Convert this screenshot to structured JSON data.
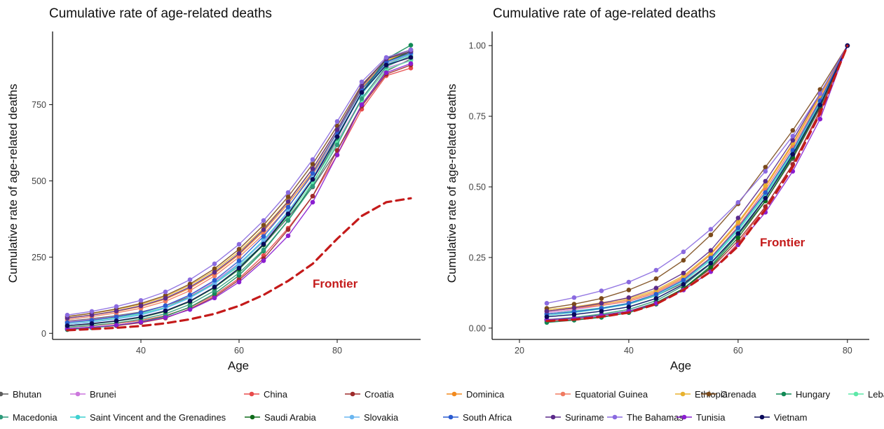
{
  "chart_data": [
    {
      "type": "line",
      "title": "Cumulative rate of age-related deaths",
      "xlabel": "Age",
      "ylabel": "Cumulative rate of age-related deaths",
      "xlim": [
        22,
        97
      ],
      "ylim": [
        -20,
        990
      ],
      "xticks": [
        40,
        60,
        80
      ],
      "yticks": [
        0,
        250,
        500,
        750
      ],
      "x": [
        25,
        30,
        35,
        40,
        45,
        50,
        55,
        60,
        65,
        70,
        75,
        80,
        85,
        90,
        95
      ],
      "series": [
        {
          "name": "Bhutan",
          "color": "#5b5b5b",
          "values": [
            40,
            48,
            58,
            70,
            90,
            120,
            165,
            220,
            290,
            380,
            480,
            600,
            750,
            860,
            900
          ]
        },
        {
          "name": "Brunei",
          "color": "#cc77dd",
          "values": [
            38,
            45,
            55,
            68,
            90,
            125,
            170,
            230,
            300,
            395,
            505,
            630,
            770,
            870,
            895
          ]
        },
        {
          "name": "China",
          "color": "#e84b4b",
          "values": [
            20,
            25,
            32,
            42,
            58,
            85,
            125,
            180,
            255,
            345,
            450,
            585,
            735,
            845,
            870
          ]
        },
        {
          "name": "Croatia",
          "color": "#9e2a2a",
          "values": [
            15,
            20,
            25,
            35,
            50,
            80,
            120,
            175,
            245,
            340,
            450,
            600,
            745,
            850,
            880
          ]
        },
        {
          "name": "Dominica",
          "color": "#f28a1e",
          "values": [
            50,
            60,
            72,
            88,
            112,
            148,
            196,
            258,
            335,
            425,
            530,
            660,
            800,
            895,
            920
          ]
        },
        {
          "name": "Equatorial Guinea",
          "color": "#f07a60",
          "values": [
            45,
            55,
            67,
            82,
            105,
            140,
            188,
            250,
            325,
            415,
            520,
            650,
            790,
            885,
            915
          ]
        },
        {
          "name": "Ethiopia",
          "color": "#e8b22e",
          "values": [
            55,
            65,
            78,
            95,
            120,
            158,
            206,
            268,
            345,
            435,
            540,
            668,
            805,
            895,
            925
          ]
        },
        {
          "name": "Grenada",
          "color": "#7b4a1a",
          "values": [
            55,
            66,
            80,
            98,
            124,
            162,
            212,
            276,
            355,
            448,
            555,
            680,
            815,
            900,
            930
          ]
        },
        {
          "name": "Hungary",
          "color": "#118a55",
          "values": [
            12,
            18,
            26,
            38,
            56,
            86,
            130,
            190,
            270,
            370,
            490,
            640,
            790,
            900,
            945
          ]
        },
        {
          "name": "Lebanon",
          "color": "#5de8a8",
          "values": [
            35,
            42,
            52,
            65,
            85,
            118,
            162,
            220,
            292,
            385,
            495,
            625,
            765,
            865,
            895
          ]
        },
        {
          "name": "Macedonia",
          "color": "#2d9a7a",
          "values": [
            20,
            26,
            34,
            46,
            64,
            95,
            140,
            198,
            274,
            370,
            482,
            618,
            770,
            875,
            910
          ]
        },
        {
          "name": "Saint Vincent and the Grenadines",
          "color": "#3fd0d0",
          "values": [
            30,
            38,
            48,
            62,
            84,
            118,
            165,
            228,
            306,
            400,
            510,
            645,
            785,
            880,
            915
          ]
        },
        {
          "name": "Saudi Arabia",
          "color": "#0e6b1a",
          "values": [
            25,
            31,
            40,
            52,
            72,
            104,
            150,
            210,
            290,
            390,
            505,
            645,
            790,
            890,
            925
          ]
        },
        {
          "name": "Slovakia",
          "color": "#6ab6f0",
          "values": [
            30,
            37,
            47,
            60,
            82,
            116,
            162,
            225,
            302,
            398,
            510,
            650,
            790,
            885,
            918
          ]
        },
        {
          "name": "South Africa",
          "color": "#2a5bd0",
          "values": [
            35,
            43,
            54,
            68,
            91,
            126,
            174,
            238,
            318,
            414,
            525,
            660,
            800,
            890,
            920
          ]
        },
        {
          "name": "Suriname",
          "color": "#5b2a8a",
          "values": [
            50,
            60,
            73,
            90,
            115,
            152,
            200,
            262,
            340,
            432,
            540,
            668,
            810,
            900,
            925
          ]
        },
        {
          "name": "The Bahamas",
          "color": "#8a6ae0",
          "values": [
            60,
            72,
            88,
            108,
            136,
            176,
            228,
            292,
            370,
            462,
            570,
            695,
            825,
            905,
            930
          ]
        },
        {
          "name": "Tunisia",
          "color": "#8a1ed0",
          "values": [
            15,
            20,
            27,
            37,
            52,
            78,
            116,
            168,
            238,
            320,
            430,
            585,
            750,
            855,
            885
          ]
        },
        {
          "name": "Vietnam",
          "color": "#0a0a5a",
          "values": [
            25,
            32,
            41,
            54,
            74,
            106,
            152,
            214,
            293,
            392,
            505,
            645,
            790,
            880,
            905
          ]
        }
      ],
      "frontier": {
        "label": "Frontier",
        "color": "#c41a1a",
        "x": [
          25,
          30,
          35,
          40,
          45,
          50,
          55,
          60,
          65,
          70,
          75,
          80,
          85,
          90,
          95
        ],
        "values": [
          10,
          14,
          18,
          24,
          33,
          46,
          64,
          90,
          126,
          172,
          228,
          310,
          385,
          430,
          443
        ]
      },
      "frontier_label_at": [
        75,
        150
      ]
    },
    {
      "type": "line",
      "title": "Cumulative rate of age-related deaths",
      "xlabel": "Age",
      "ylabel": "Cumulative rate of age-related deaths",
      "xlim": [
        15,
        84
      ],
      "ylim": [
        -0.04,
        1.05
      ],
      "xticks": [
        20,
        40,
        60,
        80
      ],
      "yticks": [
        0.0,
        0.25,
        0.5,
        0.75,
        1.0
      ],
      "ytick_labels": [
        "0.00",
        "0.25",
        "0.50",
        "0.75",
        "1.00"
      ],
      "x": [
        25,
        30,
        35,
        40,
        45,
        50,
        55,
        60,
        65,
        70,
        75,
        80
      ],
      "series": [
        {
          "name": "Bhutan",
          "color": "#5b5b5b",
          "values": [
            0.05,
            0.06,
            0.07,
            0.085,
            0.115,
            0.16,
            0.23,
            0.33,
            0.45,
            0.6,
            0.78,
            1.0
          ]
        },
        {
          "name": "Brunei",
          "color": "#cc77dd",
          "values": [
            0.055,
            0.065,
            0.08,
            0.095,
            0.125,
            0.175,
            0.25,
            0.36,
            0.48,
            0.63,
            0.8,
            1.0
          ]
        },
        {
          "name": "China",
          "color": "#e84b4b",
          "values": [
            0.03,
            0.035,
            0.045,
            0.06,
            0.085,
            0.135,
            0.2,
            0.3,
            0.43,
            0.58,
            0.76,
            1.0
          ]
        },
        {
          "name": "Croatia",
          "color": "#9e2a2a",
          "values": [
            0.025,
            0.03,
            0.04,
            0.055,
            0.085,
            0.14,
            0.21,
            0.31,
            0.43,
            0.58,
            0.77,
            1.0
          ]
        },
        {
          "name": "Dominica",
          "color": "#f28a1e",
          "values": [
            0.06,
            0.07,
            0.085,
            0.1,
            0.13,
            0.18,
            0.26,
            0.37,
            0.5,
            0.65,
            0.82,
            1.0
          ]
        },
        {
          "name": "Equatorial Guinea",
          "color": "#f07a60",
          "values": [
            0.06,
            0.07,
            0.08,
            0.095,
            0.125,
            0.175,
            0.25,
            0.36,
            0.49,
            0.64,
            0.81,
            1.0
          ]
        },
        {
          "name": "Ethiopia",
          "color": "#e8b22e",
          "values": [
            0.065,
            0.075,
            0.09,
            0.105,
            0.135,
            0.185,
            0.265,
            0.375,
            0.505,
            0.655,
            0.825,
            1.0
          ]
        },
        {
          "name": "Grenada",
          "color": "#7b4a1a",
          "values": [
            0.07,
            0.085,
            0.105,
            0.135,
            0.175,
            0.24,
            0.33,
            0.44,
            0.57,
            0.7,
            0.845,
            1.0
          ]
        },
        {
          "name": "Hungary",
          "color": "#118a55",
          "values": [
            0.02,
            0.028,
            0.038,
            0.055,
            0.085,
            0.14,
            0.22,
            0.33,
            0.46,
            0.61,
            0.79,
            1.0
          ]
        },
        {
          "name": "Lebanon",
          "color": "#5de8a8",
          "values": [
            0.05,
            0.06,
            0.072,
            0.088,
            0.12,
            0.17,
            0.245,
            0.35,
            0.475,
            0.625,
            0.8,
            1.0
          ]
        },
        {
          "name": "Macedonia",
          "color": "#2d9a7a",
          "values": [
            0.03,
            0.038,
            0.05,
            0.066,
            0.097,
            0.15,
            0.228,
            0.335,
            0.462,
            0.615,
            0.79,
            1.0
          ]
        },
        {
          "name": "Saint Vincent and the Grenadines",
          "color": "#3fd0d0",
          "values": [
            0.045,
            0.055,
            0.068,
            0.085,
            0.115,
            0.165,
            0.24,
            0.345,
            0.47,
            0.62,
            0.795,
            1.0
          ]
        },
        {
          "name": "Saudi Arabia",
          "color": "#0e6b1a",
          "values": [
            0.03,
            0.035,
            0.046,
            0.06,
            0.09,
            0.14,
            0.215,
            0.32,
            0.45,
            0.605,
            0.785,
            1.0
          ]
        },
        {
          "name": "Slovakia",
          "color": "#6ab6f0",
          "values": [
            0.04,
            0.048,
            0.06,
            0.075,
            0.105,
            0.155,
            0.23,
            0.335,
            0.46,
            0.615,
            0.79,
            1.0
          ]
        },
        {
          "name": "South Africa",
          "color": "#2a5bd0",
          "values": [
            0.05,
            0.058,
            0.07,
            0.088,
            0.12,
            0.17,
            0.248,
            0.355,
            0.48,
            0.63,
            0.805,
            1.0
          ]
        },
        {
          "name": "Suriname",
          "color": "#5b2a8a",
          "values": [
            0.06,
            0.072,
            0.088,
            0.108,
            0.142,
            0.195,
            0.275,
            0.39,
            0.52,
            0.665,
            0.83,
            1.0
          ]
        },
        {
          "name": "The Bahamas",
          "color": "#8a6ae0",
          "values": [
            0.088,
            0.108,
            0.132,
            0.163,
            0.205,
            0.27,
            0.35,
            0.445,
            0.555,
            0.68,
            0.83,
            1.0
          ]
        },
        {
          "name": "Tunisia",
          "color": "#8a1ed0",
          "values": [
            0.03,
            0.035,
            0.045,
            0.06,
            0.088,
            0.135,
            0.2,
            0.295,
            0.41,
            0.555,
            0.74,
            1.0
          ]
        },
        {
          "name": "Vietnam",
          "color": "#0a0a5a",
          "values": [
            0.04,
            0.048,
            0.06,
            0.075,
            0.105,
            0.155,
            0.23,
            0.335,
            0.46,
            0.615,
            0.79,
            1.0
          ]
        }
      ],
      "frontier": {
        "label": "Frontier",
        "color": "#c41a1a",
        "x": [
          25,
          30,
          35,
          40,
          45,
          50,
          55,
          60,
          65,
          70,
          75,
          80
        ],
        "values": [
          0.025,
          0.03,
          0.04,
          0.055,
          0.085,
          0.135,
          0.2,
          0.29,
          0.42,
          0.57,
          0.76,
          1.0
        ]
      },
      "frontier_label_at": [
        64,
        0.29
      ]
    }
  ],
  "legend": {
    "row1": [
      "Bhutan",
      "Brunei",
      "China",
      "Croatia",
      "Dominica",
      "Equatorial Guinea",
      "Ethiopia",
      "Grenada",
      "Hungary",
      "Lebanon"
    ],
    "row2": [
      "Macedonia",
      "Saint Vincent and the Grenadines",
      "Saudi Arabia",
      "Slovakia",
      "South Africa",
      "Suriname",
      "The Bahamas",
      "Tunisia",
      "Vietnam"
    ]
  }
}
